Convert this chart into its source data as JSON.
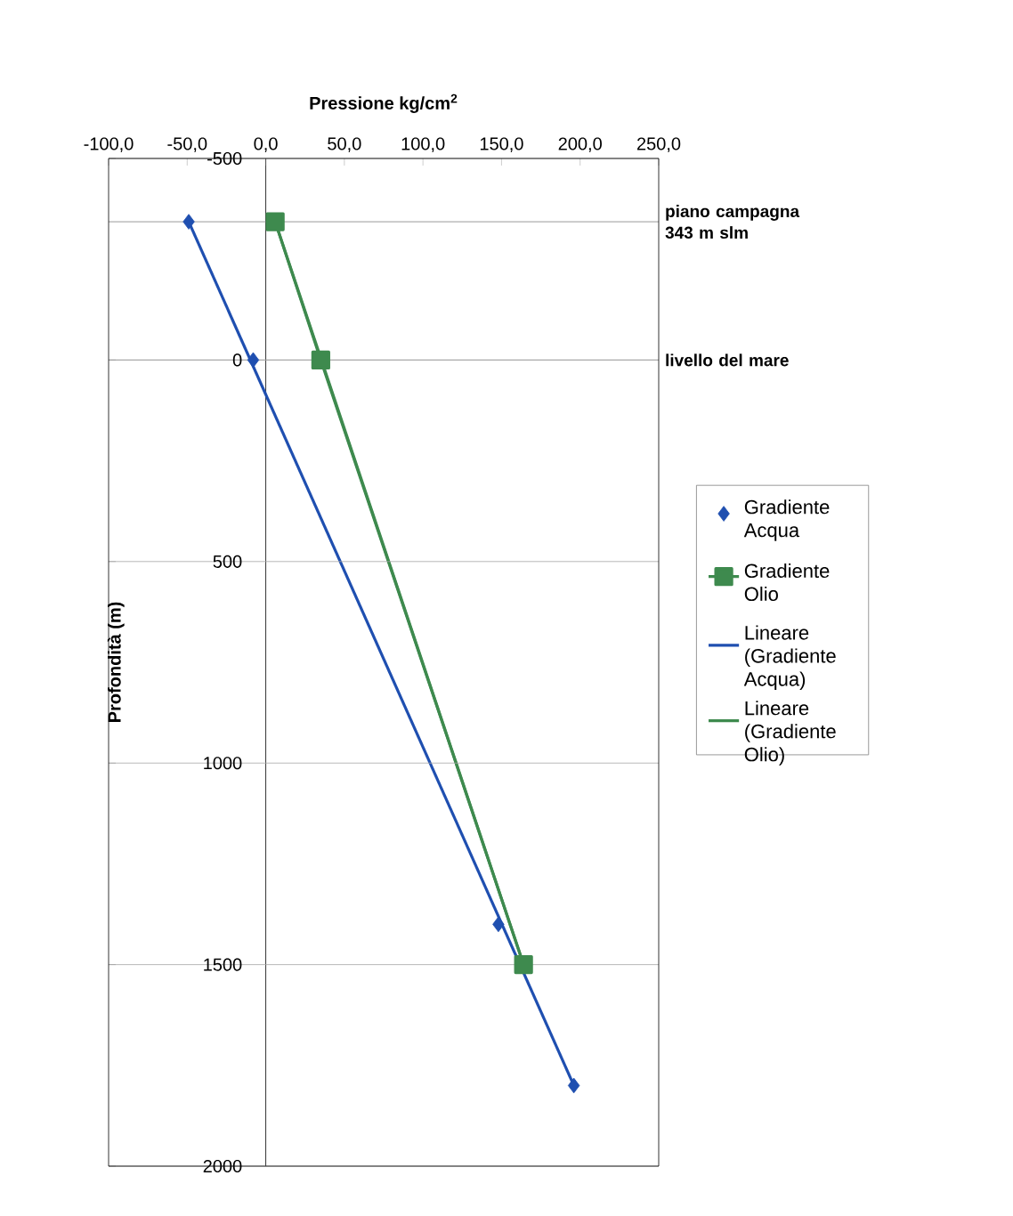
{
  "chart_data": {
    "type": "scatter",
    "xlabel": "Pressione kg/cm$^{2}$",
    "ylabel": "Profondità (m)",
    "xlim": [
      -100,
      250
    ],
    "ylim": [
      2000,
      -500
    ],
    "xticks": [
      {
        "value": -100,
        "label": "-100,0"
      },
      {
        "value": -50,
        "label": "-50,0"
      },
      {
        "value": 0,
        "label": "0,0"
      },
      {
        "value": 50,
        "label": "50,0"
      },
      {
        "value": 100,
        "label": "100,0"
      },
      {
        "value": 150,
        "label": "150,0"
      },
      {
        "value": 200,
        "label": "200,0"
      },
      {
        "value": 250,
        "label": "250,0"
      }
    ],
    "yticks": [
      -500,
      0,
      500,
      1000,
      1500,
      2000
    ],
    "grid": "y",
    "legend": "right",
    "ref_lines": [
      {
        "axis": "y",
        "value": -343,
        "label": "piano campagna 343 m slm",
        "color": "#808080"
      },
      {
        "axis": "y",
        "value": 0,
        "label": "livello del mare",
        "color": "#808080"
      }
    ],
    "series": [
      {
        "name": "Gradiente Acqua",
        "marker": "diamond",
        "color": "#1f4fb0",
        "x": [
          -49,
          -8,
          148,
          196
        ],
        "values": [
          -343,
          0,
          1400,
          1800
        ]
      },
      {
        "name": "Gradiente Olio",
        "type": "line",
        "marker": "square",
        "color": "#3e8a4e",
        "x": [
          6,
          35,
          164
        ],
        "values": [
          -343,
          0,
          1500
        ]
      },
      {
        "name": "Lineare (Gradiente Acqua)",
        "type": "line",
        "marker": "none",
        "color": "#1f4fb0",
        "x": [
          -49,
          196
        ],
        "values": [
          -343,
          1800
        ]
      },
      {
        "name": "Lineare (Gradiente Olio)",
        "type": "line",
        "marker": "none",
        "color": "#3e8a4e",
        "x": [
          6,
          164
        ],
        "values": [
          -343,
          1500
        ]
      }
    ]
  }
}
